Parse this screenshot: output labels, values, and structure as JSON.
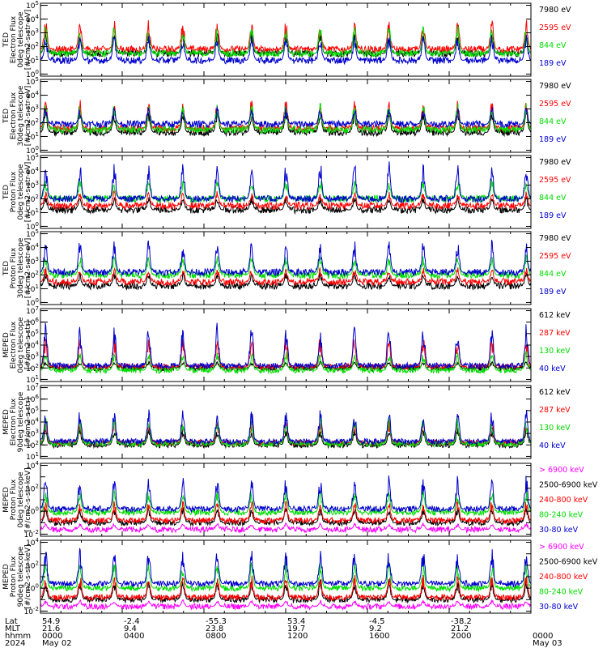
{
  "chart_data": [
    {
      "type": "line",
      "ylabel": [
        "TED",
        "Electron Flux",
        "0deg telescope",
        "[#/cm2-s-str-eV]"
      ],
      "ytick_exponents": [
        0,
        1,
        2,
        3,
        4,
        5
      ],
      "series": [
        {
          "name": "7980 eV",
          "color": "#000000",
          "base": 1.5,
          "peak": 3.2
        },
        {
          "name": "2595 eV",
          "color": "#ff0000",
          "base": 1.8,
          "peak": 4.0
        },
        {
          "name": "844 eV",
          "color": "#00dd00",
          "base": 1.5,
          "peak": 3.6
        },
        {
          "name": "189 eV",
          "color": "#0000cc",
          "base": 1.0,
          "peak": 3.0
        }
      ]
    },
    {
      "type": "line",
      "ylabel": [
        "TED",
        "Electron Flux",
        "30deg telescope",
        "[#/cm2-s-str-eV]"
      ],
      "ytick_exponents": [
        0,
        1,
        2,
        3,
        4,
        5
      ],
      "series": [
        {
          "name": "7980 eV",
          "color": "#000000",
          "base": 1.3,
          "peak": 3.0
        },
        {
          "name": "2595 eV",
          "color": "#ff0000",
          "base": 1.6,
          "peak": 3.8
        },
        {
          "name": "844 eV",
          "color": "#00dd00",
          "base": 1.5,
          "peak": 3.5
        },
        {
          "name": "189 eV",
          "color": "#0000cc",
          "base": 1.9,
          "peak": 3.2
        }
      ]
    },
    {
      "type": "line",
      "ylabel": [
        "TED",
        "Proton Flux",
        "0deg telescope",
        "[#/cm2-s-str-eV]"
      ],
      "ytick_exponents": [
        0,
        1,
        2,
        3,
        4,
        5
      ],
      "series": [
        {
          "name": "7980 eV",
          "color": "#000000",
          "base": 1.2,
          "peak": 2.2
        },
        {
          "name": "2595 eV",
          "color": "#ff0000",
          "base": 1.5,
          "peak": 2.6
        },
        {
          "name": "844 eV",
          "color": "#00dd00",
          "base": 2.0,
          "peak": 3.5
        },
        {
          "name": "189 eV",
          "color": "#0000cc",
          "base": 2.0,
          "peak": 4.8
        }
      ]
    },
    {
      "type": "line",
      "ylabel": [
        "TED",
        "Proton Flux",
        "30deg telescope",
        "[#/cm2-s-str-eV]"
      ],
      "ytick_exponents": [
        0,
        1,
        2,
        3,
        4,
        5
      ],
      "series": [
        {
          "name": "7980 eV",
          "color": "#000000",
          "base": 1.2,
          "peak": 2.2
        },
        {
          "name": "2595 eV",
          "color": "#ff0000",
          "base": 1.5,
          "peak": 2.6
        },
        {
          "name": "844 eV",
          "color": "#00dd00",
          "base": 2.0,
          "peak": 3.5
        },
        {
          "name": "189 eV",
          "color": "#0000cc",
          "base": 2.2,
          "peak": 4.6
        }
      ]
    },
    {
      "type": "line",
      "ylabel": [
        "MEPED",
        "Electron Flux",
        "0deg telescope",
        "[#/cm2-s-str]"
      ],
      "ytick_exponents": [
        1,
        2,
        3,
        4,
        5,
        6,
        7
      ],
      "series": [
        {
          "name": "612 keV",
          "color": "#000000",
          "base": 2.0,
          "peak": 2.6
        },
        {
          "name": "287 keV",
          "color": "#ff0000",
          "base": 2.1,
          "peak": 4.8
        },
        {
          "name": "130 keV",
          "color": "#00dd00",
          "base": 1.8,
          "peak": 3.5
        },
        {
          "name": "40 keV",
          "color": "#0000cc",
          "base": 2.2,
          "peak": 6.0
        }
      ]
    },
    {
      "type": "line",
      "ylabel": [
        "MEPED",
        "Electron Flux",
        "90deg telescope",
        "[#/cm2-s-str]"
      ],
      "ytick_exponents": [
        1,
        2,
        3,
        4,
        5,
        6,
        7
      ],
      "series": [
        {
          "name": "612 keV",
          "color": "#000000",
          "base": 2.0,
          "peak": 3.6
        },
        {
          "name": "287 keV",
          "color": "#ff0000",
          "base": 2.2,
          "peak": 4.2
        },
        {
          "name": "130 keV",
          "color": "#00dd00",
          "base": 2.1,
          "peak": 4.6
        },
        {
          "name": "40 keV",
          "color": "#0000cc",
          "base": 2.3,
          "peak": 5.2
        }
      ]
    },
    {
      "type": "line",
      "ylabel": [
        "MEPED",
        "Proton Flux",
        "0deg telescope",
        "[#/cm2-s-str-keV]"
      ],
      "ytick_exponents": [
        -2,
        0,
        2,
        4
      ],
      "series": [
        {
          "name": "> 6900 keV",
          "color": "#ff00ff",
          "base": -1.6,
          "peak": -1.0
        },
        {
          "name": "2500-6900 keV",
          "color": "#000000",
          "base": -1.0,
          "peak": 0.5
        },
        {
          "name": "240-800 keV",
          "color": "#ff0000",
          "base": -0.8,
          "peak": 1.0
        },
        {
          "name": "80-240 keV",
          "color": "#00dd00",
          "base": -0.1,
          "peak": 2.0
        },
        {
          "name": "30-80 keV",
          "color": "#0000cc",
          "base": 0.2,
          "peak": 3.2
        }
      ]
    },
    {
      "type": "line",
      "ylabel": [
        "MEPED",
        "Proton Flux",
        "90deg telescope",
        "[#/cm2-s-str-keV]"
      ],
      "ytick_exponents": [
        -2,
        0,
        2,
        4
      ],
      "series": [
        {
          "name": "> 6900 keV",
          "color": "#ff00ff",
          "base": -1.6,
          "peak": -1.0
        },
        {
          "name": "2500-6900 keV",
          "color": "#000000",
          "base": -1.0,
          "peak": 0.8
        },
        {
          "name": "240-800 keV",
          "color": "#ff0000",
          "base": -0.8,
          "peak": 1.2
        },
        {
          "name": "80-240 keV",
          "color": "#00dd00",
          "base": 0.0,
          "peak": 2.4
        },
        {
          "name": "30-80 keV",
          "color": "#0000cc",
          "base": 0.4,
          "peak": 3.6
        }
      ]
    }
  ],
  "x_axis": {
    "row_labels": [
      "Lat",
      "MLT",
      "hhmm",
      "2024"
    ],
    "ticks": [
      {
        "hour": 0,
        "lat": "54.9",
        "mlt": "21.6",
        "hhmm": "0000",
        "date": "May 02"
      },
      {
        "hour": 4,
        "lat": "-2.4",
        "mlt": "9.4",
        "hhmm": "0400",
        "date": ""
      },
      {
        "hour": 8,
        "lat": "-55.3",
        "mlt": "23.8",
        "hhmm": "0800",
        "date": ""
      },
      {
        "hour": 12,
        "lat": "53.4",
        "mlt": "19.7",
        "hhmm": "1200",
        "date": ""
      },
      {
        "hour": 16,
        "lat": "-4.5",
        "mlt": "9.2",
        "hhmm": "1600",
        "date": ""
      },
      {
        "hour": 20,
        "lat": "-38.2",
        "mlt": "21.2",
        "hhmm": "2000",
        "date": ""
      },
      {
        "hour": 24,
        "lat": "",
        "mlt": "",
        "hhmm": "0000",
        "date": "May 03"
      }
    ]
  }
}
